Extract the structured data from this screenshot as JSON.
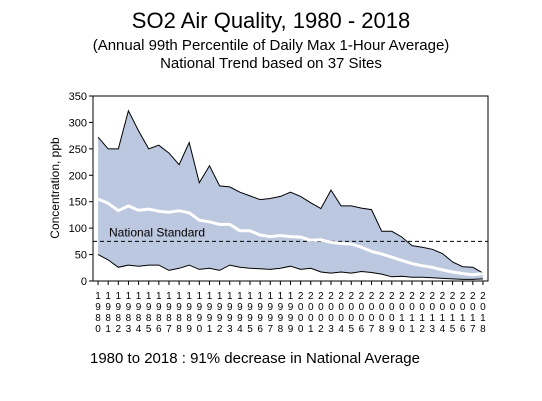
{
  "header": {
    "title": "SO2 Air Quality, 1980 - 2018",
    "subtitle": "(Annual 99th Percentile of Daily Max 1-Hour Average)",
    "subtitle2": "National Trend based on 37 Sites"
  },
  "footnote": "1980 to 2018 :  91% decrease in National Average",
  "chart_data": {
    "type": "area",
    "title": "SO2 Air Quality, 1980 - 2018",
    "subtitle": "(Annual 99th Percentile of Daily Max 1-Hour Average)",
    "ylabel": "Concentration, ppb",
    "xlabel": "",
    "ylim": [
      0,
      350
    ],
    "yticks": [
      0,
      50,
      100,
      150,
      200,
      250,
      300,
      350
    ],
    "grid": false,
    "x": [
      1980,
      1981,
      1982,
      1983,
      1984,
      1985,
      1986,
      1987,
      1988,
      1989,
      1990,
      1991,
      1992,
      1993,
      1994,
      1995,
      1996,
      1997,
      1998,
      1999,
      2000,
      2001,
      2002,
      2003,
      2004,
      2005,
      2006,
      2007,
      2008,
      2009,
      2010,
      2011,
      2012,
      2013,
      2014,
      2015,
      2016,
      2017,
      2018
    ],
    "series": [
      {
        "role": "upper",
        "values": [
          272,
          250,
          250,
          322,
          284,
          250,
          257,
          242,
          220,
          262,
          186,
          218,
          180,
          178,
          168,
          161,
          154,
          156,
          160,
          168,
          160,
          148,
          137,
          172,
          142,
          142,
          138,
          135,
          94,
          94,
          83,
          67,
          64,
          60,
          52,
          36,
          27,
          26,
          15
        ]
      },
      {
        "role": "average",
        "values": [
          155,
          147,
          133,
          142,
          134,
          136,
          132,
          130,
          133,
          129,
          115,
          112,
          107,
          107,
          95,
          95,
          87,
          84,
          86,
          84,
          83,
          77,
          78,
          73,
          71,
          70,
          64,
          56,
          51,
          45,
          39,
          33,
          29,
          26,
          21,
          17,
          14,
          12,
          14
        ]
      },
      {
        "role": "lower",
        "values": [
          50,
          40,
          26,
          30,
          28,
          30,
          30,
          20,
          24,
          30,
          22,
          24,
          20,
          30,
          26,
          24,
          23,
          22,
          24,
          28,
          22,
          24,
          17,
          15,
          17,
          15,
          18,
          16,
          13,
          8,
          9,
          7,
          7,
          6,
          5,
          4,
          3,
          3,
          4
        ]
      }
    ],
    "reference_line": {
      "label": "National Standard",
      "value": 75
    },
    "colors": {
      "band_fill": "#bcc8df",
      "band_edge": "#000000",
      "average_line": "#ffffff",
      "reference_line": "#000000"
    }
  }
}
